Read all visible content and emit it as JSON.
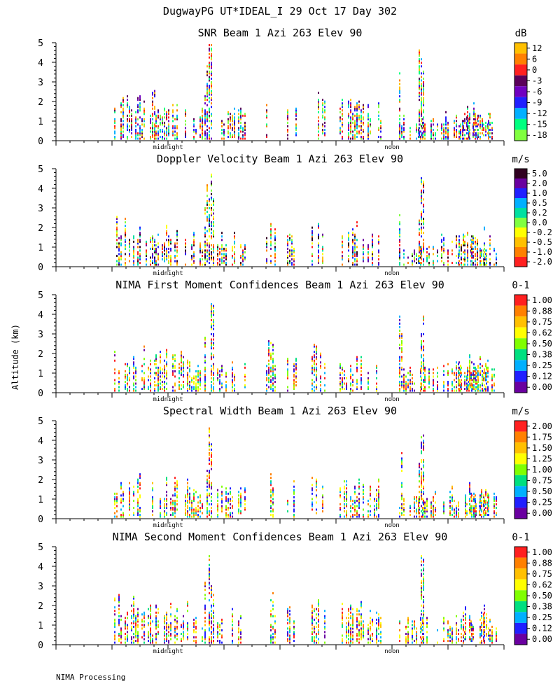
{
  "figure": {
    "title": "DugwayPG UT*IDEAL_I  29 Oct 17 Day 302",
    "ylabel": "Altitude (km)",
    "footer": "NIMA Processing"
  },
  "chart_data": [
    {
      "type": "heatmap",
      "title": "SNR Beam 1 Azi 263 Elev 90",
      "ylabel": "Altitude (km)",
      "ylim": [
        0,
        5
      ],
      "yticks": [
        "0",
        "1",
        "2",
        "3",
        "4",
        "5"
      ],
      "xtick_labels": [
        "midnight",
        "noon"
      ],
      "colorbar": {
        "unit": "dB",
        "labels": [
          "12",
          "6",
          "0",
          "-3",
          "-6",
          "-9",
          "-12",
          "-15",
          "-18"
        ],
        "colors": [
          "#ffc000",
          "#ff8000",
          "#ff2020",
          "#5a005a",
          "#7000c0",
          "#2020ff",
          "#00b0ff",
          "#00ff80",
          "#80ff40"
        ]
      }
    },
    {
      "type": "heatmap",
      "title": "Doppler Velocity Beam 1 Azi 263 Elev 90",
      "ylabel": "Altitude (km)",
      "ylim": [
        0,
        5
      ],
      "yticks": [
        "0",
        "1",
        "2",
        "3",
        "4",
        "5"
      ],
      "xtick_labels": [
        "midnight",
        "noon"
      ],
      "colorbar": {
        "unit": "m/s",
        "labels": [
          "5.0",
          "2.0",
          "1.0",
          "0.5",
          "0.2",
          "0.0",
          "-0.2",
          "-0.5",
          "-1.0",
          "-2.0"
        ],
        "colors": [
          "#300020",
          "#6a00a0",
          "#2020ff",
          "#00b0ff",
          "#00e0a0",
          "#80ff40",
          "#ffff00",
          "#ffc000",
          "#ff8000",
          "#ff2020"
        ]
      }
    },
    {
      "type": "heatmap",
      "title": "NIMA First Moment Confidences Beam 1 Azi 263 Elev 90",
      "ylabel": "Altitude (km)",
      "ylim": [
        0,
        5
      ],
      "yticks": [
        "0",
        "1",
        "2",
        "3",
        "4",
        "5"
      ],
      "xtick_labels": [
        "midnight",
        "noon"
      ],
      "colorbar": {
        "unit": "0-1",
        "labels": [
          "1.00",
          "0.88",
          "0.75",
          "0.62",
          "0.50",
          "0.38",
          "0.25",
          "0.12",
          "0.00"
        ],
        "colors": [
          "#ff2020",
          "#ff8000",
          "#ffc000",
          "#ffff00",
          "#80ff00",
          "#00e080",
          "#00b0ff",
          "#2020ff",
          "#6a00a0"
        ]
      }
    },
    {
      "type": "heatmap",
      "title": "Spectral Width Beam 1 Azi 263 Elev 90",
      "ylabel": "Altitude (km)",
      "ylim": [
        0,
        5
      ],
      "yticks": [
        "0",
        "1",
        "2",
        "3",
        "4",
        "5"
      ],
      "xtick_labels": [
        "midnight",
        "noon"
      ],
      "colorbar": {
        "unit": "m/s",
        "labels": [
          "2.00",
          "1.75",
          "1.50",
          "1.25",
          "1.00",
          "0.75",
          "0.50",
          "0.25",
          "0.00"
        ],
        "colors": [
          "#ff2020",
          "#ff8000",
          "#ffc000",
          "#ffff00",
          "#80ff00",
          "#00e080",
          "#00b0ff",
          "#2020ff",
          "#6a00a0"
        ]
      }
    },
    {
      "type": "heatmap",
      "title": "NIMA Second Moment Confidences Beam 1 Azi 263 Elev 90",
      "ylabel": "Altitude (km)",
      "ylim": [
        0,
        5
      ],
      "yticks": [
        "0",
        "1",
        "2",
        "3",
        "4",
        "5"
      ],
      "xtick_labels": [
        "midnight",
        "noon"
      ],
      "colorbar": {
        "unit": "0-1",
        "labels": [
          "1.00",
          "0.88",
          "0.75",
          "0.62",
          "0.50",
          "0.38",
          "0.25",
          "0.12",
          "0.00"
        ],
        "colors": [
          "#ff2020",
          "#ff8000",
          "#ffc000",
          "#ffff00",
          "#80ff00",
          "#00e080",
          "#00b0ff",
          "#2020ff",
          "#6a00a0"
        ]
      }
    }
  ]
}
